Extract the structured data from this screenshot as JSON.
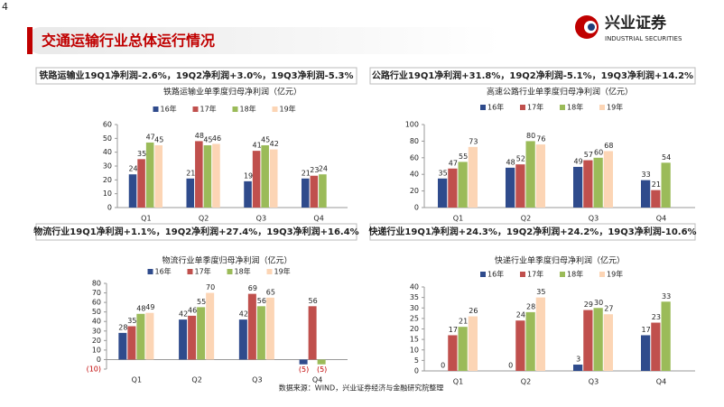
{
  "page": {
    "number": "4",
    "title": "交通运输行业总体运行情况",
    "logo": "兴业证券",
    "logo_en": "INDUSTRIAL SECURITIES",
    "source": "数据来源：WIND，兴业证券经济与金融研究院整理"
  },
  "chart_data": [
    {
      "type": "bar",
      "heading": "铁路运输业19Q1净利润-2.6%，19Q2净利润+3.0%，19Q3净利润-5.3%",
      "title": "铁路运输业单季度归母净利润（亿元）",
      "categories": [
        "Q1",
        "Q2",
        "Q3",
        "Q4"
      ],
      "series": [
        {
          "name": "16年",
          "color": "#2f4b8c",
          "values": [
            24,
            21,
            19,
            21
          ]
        },
        {
          "name": "17年",
          "color": "#c0504d",
          "values": [
            35,
            48,
            41,
            23
          ]
        },
        {
          "name": "18年",
          "color": "#9bbb59",
          "values": [
            47,
            45,
            45,
            24
          ]
        },
        {
          "name": "19年",
          "color": "#fcd5b5",
          "values": [
            45,
            46,
            42,
            null
          ]
        }
      ],
      "ylim": [
        0,
        60
      ],
      "yticks": [
        0,
        10,
        20,
        30,
        40,
        50,
        60
      ],
      "legend": "top"
    },
    {
      "type": "bar",
      "heading": "公路行业19Q1净利润+31.8%，19Q2净利润-5.1%，19Q3净利润+14.2%",
      "title": "高速公路行业单季度归母净利润（亿元）",
      "categories": [
        "Q1",
        "Q2",
        "Q3",
        "Q4"
      ],
      "series": [
        {
          "name": "16年",
          "color": "#2f4b8c",
          "values": [
            35,
            48,
            49,
            33
          ]
        },
        {
          "name": "17年",
          "color": "#c0504d",
          "values": [
            47,
            52,
            57,
            21
          ]
        },
        {
          "name": "18年",
          "color": "#9bbb59",
          "values": [
            55,
            80,
            60,
            54
          ]
        },
        {
          "name": "19年",
          "color": "#fcd5b5",
          "values": [
            73,
            76,
            68,
            null
          ]
        }
      ],
      "ylim": [
        0,
        100
      ],
      "yticks": [
        0,
        20,
        40,
        60,
        80,
        100
      ],
      "legend": "top"
    },
    {
      "type": "bar",
      "heading": "物流行业19Q1净利润+1.1%，19Q2净利润+27.4%，19Q3净利润+16.4%",
      "title": "物流行业单季度归母净利润（亿元）",
      "categories": [
        "Q1",
        "Q2",
        "Q3",
        "Q4"
      ],
      "series": [
        {
          "name": "16年",
          "color": "#2f4b8c",
          "values": [
            28,
            42,
            42,
            -5
          ],
          "value_labels": [
            "28",
            "42",
            "42",
            "(5)"
          ]
        },
        {
          "name": "17年",
          "color": "#c0504d",
          "values": [
            35,
            46,
            69,
            56
          ]
        },
        {
          "name": "18年",
          "color": "#9bbb59",
          "values": [
            48,
            55,
            56,
            -5
          ],
          "value_labels": [
            "48",
            "55",
            "56",
            "(5)"
          ]
        },
        {
          "name": "19年",
          "color": "#fcd5b5",
          "values": [
            49,
            70,
            65,
            null
          ]
        }
      ],
      "ylim": [
        -10,
        80
      ],
      "yticks": [
        {
          "value": -10,
          "label": "(10)"
        },
        0,
        10,
        20,
        30,
        40,
        50,
        60,
        70,
        80
      ],
      "legend": "top"
    },
    {
      "type": "bar",
      "heading": "快递行业19Q1净利润+24.3%，19Q2净利润+24.2%，19Q3净利润-10.6%",
      "title": "快递行业单季度归母净利润（亿元）",
      "categories": [
        "Q1",
        "Q2",
        "Q3",
        "Q4"
      ],
      "series": [
        {
          "name": "16年",
          "color": "#2f4b8c",
          "values": [
            0,
            0,
            3,
            17
          ]
        },
        {
          "name": "17年",
          "color": "#c0504d",
          "values": [
            17,
            24,
            29,
            23
          ]
        },
        {
          "name": "18年",
          "color": "#9bbb59",
          "values": [
            21,
            28,
            30,
            33
          ]
        },
        {
          "name": "19年",
          "color": "#fcd5b5",
          "values": [
            26,
            35,
            27,
            null
          ]
        }
      ],
      "ylim": [
        0,
        40
      ],
      "yticks": [
        0,
        5,
        10,
        15,
        20,
        25,
        30,
        35,
        40
      ],
      "legend": "top"
    }
  ]
}
